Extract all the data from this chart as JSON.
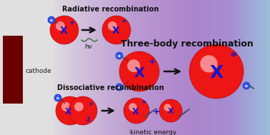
{
  "cathode_color": "#6b0000",
  "ball_red": "#ee1515",
  "ball_highlight": "#ffffff",
  "text_blue": "#1515cc",
  "text_dark": "#111111",
  "electron_fill": "#3355ee",
  "electron_edge": "#1133aa",
  "arrow_color": "#111111",
  "wavy_color": "#226622",
  "tool_color": "#444466",
  "title": "Three-body recombination",
  "cathode_label": "cathode",
  "rad_label": "Radiative recombination",
  "dis_label": "Dissociative recombination",
  "ke_label": "kinetic energy",
  "hv_label": "hν",
  "bg_gradient": [
    [
      0.0,
      [
        0.88,
        0.88,
        0.88
      ]
    ],
    [
      0.18,
      [
        0.88,
        0.88,
        0.88
      ]
    ],
    [
      0.3,
      [
        0.82,
        0.75,
        0.86
      ]
    ],
    [
      0.5,
      [
        0.73,
        0.6,
        0.82
      ]
    ],
    [
      0.7,
      [
        0.68,
        0.52,
        0.8
      ]
    ],
    [
      0.85,
      [
        0.65,
        0.55,
        0.82
      ]
    ],
    [
      1.0,
      [
        0.6,
        0.75,
        0.85
      ]
    ]
  ]
}
